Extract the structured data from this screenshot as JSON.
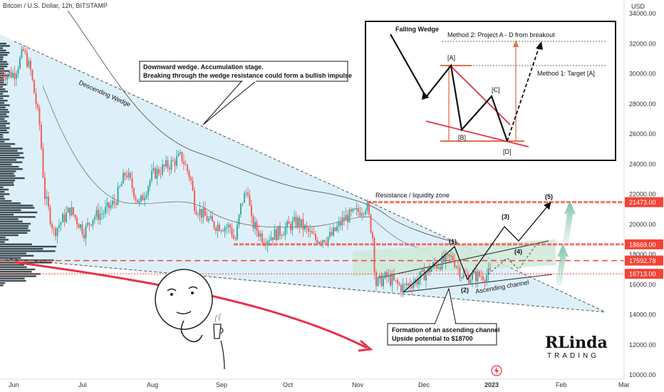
{
  "header": {
    "symbol_title": "Bitcoin / U.S. Dollar, 12h, BITSTAMP",
    "currency": "USD"
  },
  "chart_data": {
    "type": "candlestick",
    "y_axis": {
      "ticks": [
        "34000.00",
        "32000.00",
        "30000.00",
        "28000.00",
        "26000.00",
        "24000.00",
        "22000.00",
        "20000.00",
        "18000.00",
        "16000.00",
        "14000.00",
        "12000.00",
        "10000.00"
      ],
      "range": [
        10000,
        34500
      ]
    },
    "x_axis": {
      "ticks": [
        "Jun",
        "Jul",
        "Aug",
        "Sep",
        "Oct",
        "Nov",
        "Dec",
        "2023",
        "Feb",
        "Mar"
      ]
    },
    "price_levels": [
      {
        "value": 21473,
        "label": "21473.00",
        "color": "#f44336"
      },
      {
        "value": 18669,
        "label": "18669.00",
        "color": "#f44336"
      },
      {
        "value": 17592.78,
        "label": "17592.78",
        "color": "#f44336"
      },
      {
        "value": 16713,
        "label": "16713.00",
        "color": "#f44336"
      }
    ],
    "close_path": [
      [
        "2022-06-01",
        30000
      ],
      [
        "2022-06-05",
        31500
      ],
      [
        "2022-06-08",
        30200
      ],
      [
        "2022-06-12",
        26500
      ],
      [
        "2022-06-14",
        22000
      ],
      [
        "2022-06-18",
        19500
      ],
      [
        "2022-06-25",
        21000
      ],
      [
        "2022-07-01",
        19500
      ],
      [
        "2022-07-05",
        20500
      ],
      [
        "2022-07-10",
        20800
      ],
      [
        "2022-07-15",
        21500
      ],
      [
        "2022-07-20",
        23500
      ],
      [
        "2022-07-26",
        21300
      ],
      [
        "2022-08-01",
        23300
      ],
      [
        "2022-08-10",
        24100
      ],
      [
        "2022-08-14",
        24500
      ],
      [
        "2022-08-18",
        23100
      ],
      [
        "2022-08-20",
        21200
      ],
      [
        "2022-08-28",
        20000
      ],
      [
        "2022-09-05",
        19800
      ],
      [
        "2022-09-07",
        18800
      ],
      [
        "2022-09-10",
        21500
      ],
      [
        "2022-09-13",
        22400
      ],
      [
        "2022-09-14",
        20200
      ],
      [
        "2022-09-20",
        19000
      ],
      [
        "2022-09-27",
        19500
      ],
      [
        "2022-10-05",
        20200
      ],
      [
        "2022-10-13",
        19000
      ],
      [
        "2022-10-20",
        19200
      ],
      [
        "2022-10-26",
        20400
      ],
      [
        "2022-11-01",
        20800
      ],
      [
        "2022-11-05",
        21300
      ],
      [
        "2022-11-08",
        19000
      ],
      [
        "2022-11-09",
        16000
      ],
      [
        "2022-11-14",
        16500
      ],
      [
        "2022-11-21",
        15800
      ],
      [
        "2022-11-28",
        16300
      ],
      [
        "2022-12-05",
        17200
      ],
      [
        "2022-12-14",
        17800
      ],
      [
        "2022-12-19",
        16500
      ],
      [
        "2022-12-27",
        16600
      ],
      [
        "2023-01-01",
        16700
      ]
    ],
    "annotations": [
      {
        "text": "Descending Wedge"
      },
      {
        "text": "Downward wedge. Accumulation stage."
      },
      {
        "text": "Breaking through the wedge resistance could form a bullish impulse"
      },
      {
        "text": "Resistance / liquidity zone"
      },
      {
        "text": "(1)"
      },
      {
        "text": "(2)"
      },
      {
        "text": "(3)"
      },
      {
        "text": "(4)"
      },
      {
        "text": "(5)"
      },
      {
        "text": "Ascending channel"
      },
      {
        "text": "Formation of an ascending channel"
      },
      {
        "text": "Upside potential to $18700"
      }
    ]
  },
  "inset": {
    "title": "Falling Wedge",
    "method2": "Method 2: Project A - D from breakout",
    "method1": "Method 1: Target [A]",
    "point_a": "[A]",
    "point_b": "[B]",
    "point_c": "[C]",
    "point_d": "[D]"
  },
  "logo": {
    "big": "RLinda",
    "small": "TRADING"
  },
  "colors": {
    "up": "#26a69a",
    "down": "#ef5350",
    "wedge_fill": "#bfe3f5",
    "channel_fill": "#cfe9d8",
    "level_red": "#f44336",
    "level_tag": "#f44336",
    "target_arrow": "#8fc9b5"
  }
}
